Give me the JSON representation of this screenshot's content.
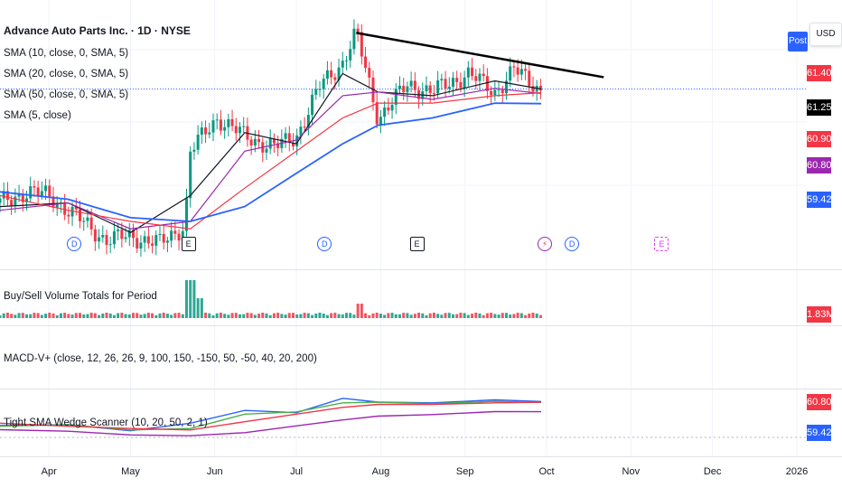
{
  "header": {
    "symbol_title": "Advance Auto Parts Inc. · 1D · NYSE",
    "post_label": "Post",
    "currency_label": "USD"
  },
  "indicators": {
    "sma10": "SMA (10, close, 0, SMA, 5)",
    "sma20": "SMA (20, close, 0, SMA, 5)",
    "sma50": "SMA (50, close, 0, SMA, 5)",
    "sma5": "SMA (5, close)",
    "volume": "Buy/Sell Volume Totals for Period",
    "macd": "MACD-V+ (close, 12, 26, 26, 9, 100, 150, -150, 50, -50, 40, 20, 200)",
    "wedge": "Tight SMA Wedge Scanner (10, 20, 50, 2, 1)"
  },
  "price_tags": {
    "p1": "61.40",
    "p2": "61.25",
    "p3": "60.90",
    "p4": "60.80",
    "p5": "59.42",
    "vol": "1.83M",
    "osc1": "60.80",
    "osc2": "59.42"
  },
  "colors": {
    "up": "#089981",
    "down": "#f23645",
    "sma10": "#131722",
    "sma20": "#9c27b0",
    "sma50": "#f23645",
    "sma_long": "#2962ff",
    "trendline": "#000000"
  },
  "event_markers": [
    {
      "type": "dividend",
      "label": "D",
      "date": "2025-04-10"
    },
    {
      "type": "earnings",
      "label": "E",
      "date": "2025-05-22"
    },
    {
      "type": "dividend",
      "label": "D",
      "date": "2025-07-11"
    },
    {
      "type": "earnings",
      "label": "E",
      "date": "2025-08-14"
    },
    {
      "type": "split",
      "label": "⚡",
      "date": "2025-09-30"
    },
    {
      "type": "dividend",
      "label": "D",
      "date": "2025-10-10"
    },
    {
      "type": "future-earnings",
      "label": "E",
      "date": "2025-11-12"
    }
  ],
  "chart_data": {
    "type": "line",
    "title": "Advance Auto Parts Inc. · 1D · NYSE",
    "x_axis_ticks": [
      "Apr",
      "May",
      "Jun",
      "Jul",
      "Aug",
      "Sep",
      "Oct",
      "Nov",
      "Dec",
      "2026"
    ],
    "price_ylim": [
      38,
      71
    ],
    "price_scale_ticks": [
      61.4,
      61.25,
      60.9,
      60.8,
      59.42
    ],
    "series": [
      {
        "name": "Close",
        "x": [
          "2025-03-14",
          "2025-03-24",
          "2025-04-01",
          "2025-04-08",
          "2025-04-15",
          "2025-04-22",
          "2025-05-01",
          "2025-05-12",
          "2025-05-21",
          "2025-05-23",
          "2025-06-02",
          "2025-06-12",
          "2025-06-23",
          "2025-07-01",
          "2025-07-10",
          "2025-07-18",
          "2025-07-23",
          "2025-07-31",
          "2025-08-11",
          "2025-08-20",
          "2025-09-02",
          "2025-09-12",
          "2025-09-19",
          "2025-09-29"
        ],
        "values": [
          46.0,
          47.5,
          47.0,
          45.0,
          43.0,
          41.0,
          41.5,
          40.5,
          43.0,
          53.0,
          57.5,
          55.0,
          53.5,
          55.0,
          62.0,
          65.0,
          69.0,
          57.5,
          62.0,
          61.0,
          63.5,
          61.0,
          64.0,
          61.25
        ]
      },
      {
        "name": "SMA 10",
        "x": [
          "2025-03-14",
          "2025-04-08",
          "2025-05-01",
          "2025-05-23",
          "2025-06-12",
          "2025-07-01",
          "2025-07-18",
          "2025-07-31",
          "2025-08-20",
          "2025-09-12",
          "2025-09-29"
        ],
        "values": [
          45.5,
          46.0,
          42.0,
          47.0,
          55.5,
          54.0,
          63.5,
          61.0,
          60.5,
          62.5,
          61.4
        ]
      },
      {
        "name": "SMA 20",
        "x": [
          "2025-03-14",
          "2025-04-08",
          "2025-05-01",
          "2025-05-23",
          "2025-06-12",
          "2025-07-01",
          "2025-07-18",
          "2025-07-31",
          "2025-08-20",
          "2025-09-12",
          "2025-09-29"
        ],
        "values": [
          45.0,
          46.0,
          42.5,
          43.5,
          53.0,
          54.5,
          60.5,
          61.0,
          60.0,
          61.5,
          60.8
        ]
      },
      {
        "name": "SMA 50",
        "x": [
          "2025-03-14",
          "2025-04-08",
          "2025-05-01",
          "2025-05-23",
          "2025-06-12",
          "2025-07-01",
          "2025-07-18",
          "2025-07-31",
          "2025-08-20",
          "2025-09-12",
          "2025-09-29"
        ],
        "values": [
          47.0,
          45.0,
          43.5,
          42.5,
          48.0,
          53.0,
          57.5,
          59.5,
          59.5,
          60.5,
          60.9
        ]
      },
      {
        "name": "SMA 5",
        "x": [
          "2025-03-14",
          "2025-04-08",
          "2025-05-01",
          "2025-05-23",
          "2025-06-12",
          "2025-07-01",
          "2025-07-18",
          "2025-07-31",
          "2025-08-20",
          "2025-09-12",
          "2025-09-29"
        ],
        "values": [
          47.5,
          46.5,
          44.0,
          43.5,
          45.5,
          50.0,
          54.0,
          56.5,
          57.5,
          59.5,
          59.42
        ]
      }
    ],
    "trendline": {
      "x": [
        "2025-07-23",
        "2025-10-22"
      ],
      "values": [
        69.0,
        63.0
      ]
    },
    "last_price_line": 61.4,
    "volume_legend": "Buy/Sell Volume Totals for Period",
    "volume_last": "1.83M"
  }
}
